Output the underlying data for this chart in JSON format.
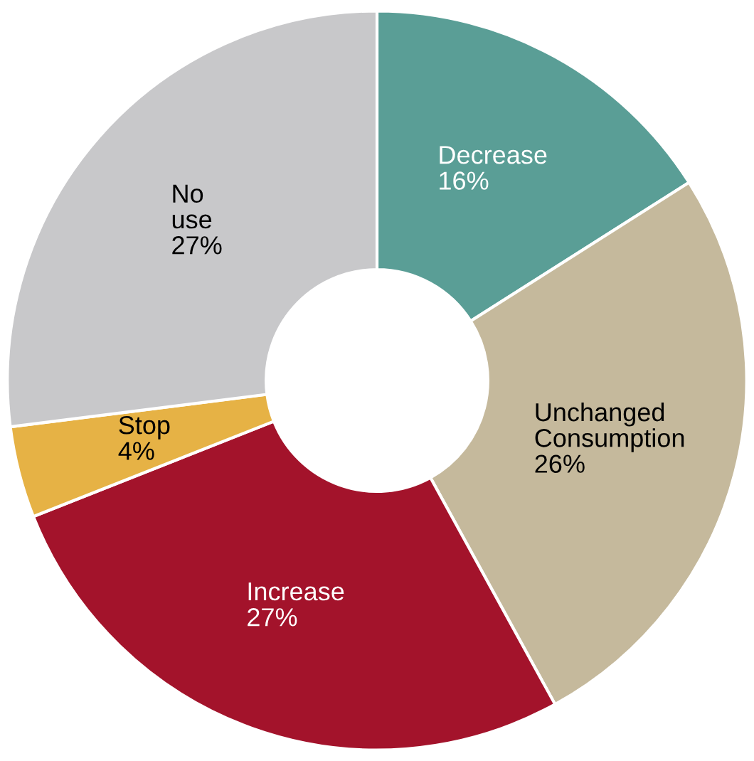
{
  "chart_data": {
    "type": "donut",
    "categories": [
      "Decrease",
      "Unchanged Consumption",
      "Increase",
      "Stop",
      "No use"
    ],
    "values": [
      16,
      26,
      27,
      4,
      27
    ],
    "colors": [
      "#5a9e96",
      "#c5b99c",
      "#a3132b",
      "#e6b245",
      "#c8c8ca"
    ],
    "value_labels": [
      "16%",
      "26%",
      "27%",
      "4%",
      "27%"
    ],
    "legend": false
  }
}
